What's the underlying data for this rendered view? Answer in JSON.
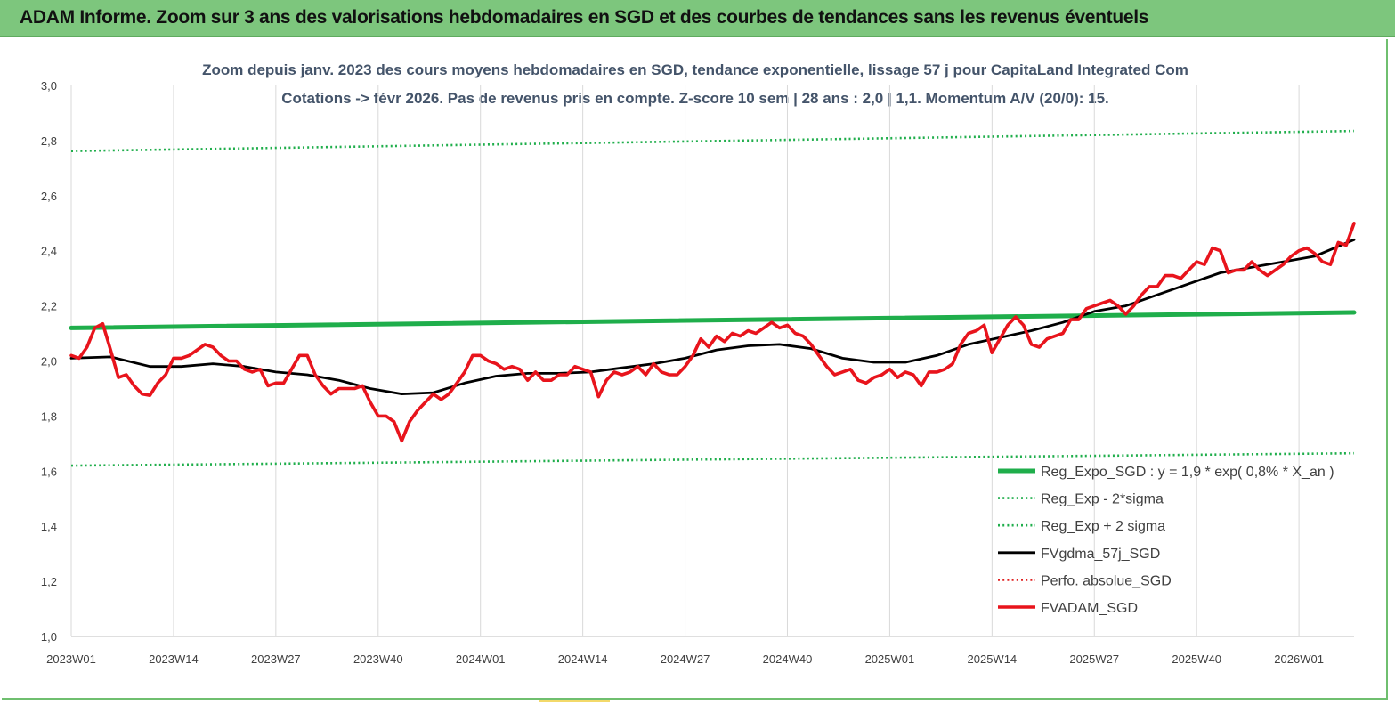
{
  "banner": {
    "title": "ADAM Informe. Zoom sur 3 ans des valorisations hebdomadaires en SGD et des courbes de tendances sans les revenus éventuels"
  },
  "chart_data": {
    "type": "line",
    "title_line1": "Zoom depuis janv. 2023 des cours moyens hebdomadaires en SGD, tendance exponentielle, lissage 57 j pour CapitaLand Integrated Com",
    "title_line2": "Cotations -> févr 2026.  Pas de revenus pris en compte. Z-score 10 sem  | 28 ans : 2,0 | 1,1. Momentum A/V (20/0): 15.",
    "ylim": [
      1.0,
      3.0
    ],
    "yticks": [
      "1,0",
      "1,2",
      "1,4",
      "1,6",
      "1,8",
      "2,0",
      "2,2",
      "2,4",
      "2,6",
      "2,8",
      "3,0"
    ],
    "xlim": [
      0,
      163
    ],
    "xticks": [
      {
        "x": 0,
        "label": "2023W01"
      },
      {
        "x": 13,
        "label": "2023W14"
      },
      {
        "x": 26,
        "label": "2023W27"
      },
      {
        "x": 39,
        "label": "2023W40"
      },
      {
        "x": 52,
        "label": "2024W01"
      },
      {
        "x": 65,
        "label": "2024W14"
      },
      {
        "x": 78,
        "label": "2024W27"
      },
      {
        "x": 91,
        "label": "2024W40"
      },
      {
        "x": 104,
        "label": "2025W01"
      },
      {
        "x": 117,
        "label": "2025W14"
      },
      {
        "x": 130,
        "label": "2025W27"
      },
      {
        "x": 143,
        "label": "2025W40"
      },
      {
        "x": 156,
        "label": "2026W01"
      }
    ],
    "grid": "vertical",
    "legend_position": "bottom-right",
    "series": [
      {
        "name": "Reg_Expo_SGD : y = 1,9 * exp( 0,8% *  X_an )",
        "color": "#1fae4b",
        "style": "solid-thick",
        "points": [
          [
            0,
            2.12
          ],
          [
            163,
            2.176
          ]
        ]
      },
      {
        "name": "Reg_Exp - 2*sigma",
        "color": "#1fae4b",
        "style": "dotted",
        "points": [
          [
            0,
            1.62
          ],
          [
            163,
            1.665
          ]
        ]
      },
      {
        "name": "Reg_Exp + 2 sigma",
        "color": "#1fae4b",
        "style": "dotted",
        "points": [
          [
            0,
            2.762
          ],
          [
            163,
            2.835
          ]
        ]
      },
      {
        "name": "FVgdma_57j_SGD",
        "color": "#000000",
        "style": "solid",
        "points": [
          [
            0,
            2.01
          ],
          [
            5,
            2.015
          ],
          [
            10,
            1.98
          ],
          [
            14,
            1.98
          ],
          [
            18,
            1.99
          ],
          [
            22,
            1.98
          ],
          [
            26,
            1.96
          ],
          [
            30,
            1.95
          ],
          [
            34,
            1.93
          ],
          [
            38,
            1.9
          ],
          [
            42,
            1.88
          ],
          [
            46,
            1.885
          ],
          [
            50,
            1.92
          ],
          [
            54,
            1.945
          ],
          [
            58,
            1.955
          ],
          [
            62,
            1.955
          ],
          [
            66,
            1.96
          ],
          [
            70,
            1.975
          ],
          [
            74,
            1.99
          ],
          [
            78,
            2.01
          ],
          [
            82,
            2.04
          ],
          [
            86,
            2.055
          ],
          [
            90,
            2.06
          ],
          [
            94,
            2.045
          ],
          [
            98,
            2.01
          ],
          [
            102,
            1.995
          ],
          [
            106,
            1.995
          ],
          [
            110,
            2.02
          ],
          [
            114,
            2.06
          ],
          [
            118,
            2.085
          ],
          [
            122,
            2.11
          ],
          [
            126,
            2.14
          ],
          [
            130,
            2.18
          ],
          [
            134,
            2.2
          ],
          [
            138,
            2.24
          ],
          [
            142,
            2.28
          ],
          [
            146,
            2.32
          ],
          [
            150,
            2.34
          ],
          [
            154,
            2.36
          ],
          [
            158,
            2.38
          ],
          [
            163,
            2.44
          ]
        ]
      },
      {
        "name": "Perfo. absolue_SGD",
        "color": "#e02020",
        "style": "dotted",
        "points": []
      },
      {
        "name": "FVADAM_SGD",
        "color": "#e8141c",
        "style": "solid-thick",
        "points": [
          [
            0,
            2.02
          ],
          [
            1,
            2.01
          ],
          [
            2,
            2.05
          ],
          [
            3,
            2.12
          ],
          [
            4,
            2.135
          ],
          [
            5,
            2.04
          ],
          [
            6,
            1.94
          ],
          [
            7,
            1.95
          ],
          [
            8,
            1.91
          ],
          [
            9,
            1.88
          ],
          [
            10,
            1.875
          ],
          [
            11,
            1.92
          ],
          [
            12,
            1.95
          ],
          [
            13,
            2.01
          ],
          [
            14,
            2.01
          ],
          [
            15,
            2.02
          ],
          [
            16,
            2.04
          ],
          [
            17,
            2.06
          ],
          [
            18,
            2.05
          ],
          [
            19,
            2.02
          ],
          [
            20,
            2.0
          ],
          [
            21,
            2.0
          ],
          [
            22,
            1.97
          ],
          [
            23,
            1.96
          ],
          [
            24,
            1.97
          ],
          [
            25,
            1.91
          ],
          [
            26,
            1.92
          ],
          [
            27,
            1.92
          ],
          [
            28,
            1.97
          ],
          [
            29,
            2.02
          ],
          [
            30,
            2.02
          ],
          [
            31,
            1.95
          ],
          [
            32,
            1.91
          ],
          [
            33,
            1.88
          ],
          [
            34,
            1.9
          ],
          [
            35,
            1.9
          ],
          [
            36,
            1.9
          ],
          [
            37,
            1.91
          ],
          [
            38,
            1.85
          ],
          [
            39,
            1.8
          ],
          [
            40,
            1.8
          ],
          [
            41,
            1.78
          ],
          [
            42,
            1.71
          ],
          [
            43,
            1.78
          ],
          [
            44,
            1.82
          ],
          [
            45,
            1.85
          ],
          [
            46,
            1.88
          ],
          [
            47,
            1.86
          ],
          [
            48,
            1.88
          ],
          [
            49,
            1.92
          ],
          [
            50,
            1.96
          ],
          [
            51,
            2.02
          ],
          [
            52,
            2.02
          ],
          [
            53,
            2.0
          ],
          [
            54,
            1.99
          ],
          [
            55,
            1.97
          ],
          [
            56,
            1.98
          ],
          [
            57,
            1.97
          ],
          [
            58,
            1.93
          ],
          [
            59,
            1.96
          ],
          [
            60,
            1.93
          ],
          [
            61,
            1.93
          ],
          [
            62,
            1.95
          ],
          [
            63,
            1.95
          ],
          [
            64,
            1.98
          ],
          [
            65,
            1.97
          ],
          [
            66,
            1.96
          ],
          [
            67,
            1.87
          ],
          [
            68,
            1.93
          ],
          [
            69,
            1.96
          ],
          [
            70,
            1.95
          ],
          [
            71,
            1.96
          ],
          [
            72,
            1.98
          ],
          [
            73,
            1.95
          ],
          [
            74,
            1.99
          ],
          [
            75,
            1.96
          ],
          [
            76,
            1.95
          ],
          [
            77,
            1.95
          ],
          [
            78,
            1.98
          ],
          [
            79,
            2.02
          ],
          [
            80,
            2.08
          ],
          [
            81,
            2.05
          ],
          [
            82,
            2.09
          ],
          [
            83,
            2.07
          ],
          [
            84,
            2.1
          ],
          [
            85,
            2.09
          ],
          [
            86,
            2.11
          ],
          [
            87,
            2.1
          ],
          [
            88,
            2.12
          ],
          [
            89,
            2.14
          ],
          [
            90,
            2.12
          ],
          [
            91,
            2.13
          ],
          [
            92,
            2.1
          ],
          [
            93,
            2.09
          ],
          [
            94,
            2.06
          ],
          [
            95,
            2.02
          ],
          [
            96,
            1.98
          ],
          [
            97,
            1.95
          ],
          [
            98,
            1.96
          ],
          [
            99,
            1.97
          ],
          [
            100,
            1.93
          ],
          [
            101,
            1.92
          ],
          [
            102,
            1.94
          ],
          [
            103,
            1.95
          ],
          [
            104,
            1.97
          ],
          [
            105,
            1.94
          ],
          [
            106,
            1.96
          ],
          [
            107,
            1.95
          ],
          [
            108,
            1.91
          ],
          [
            109,
            1.96
          ],
          [
            110,
            1.96
          ],
          [
            111,
            1.97
          ],
          [
            112,
            1.99
          ],
          [
            113,
            2.06
          ],
          [
            114,
            2.1
          ],
          [
            115,
            2.11
          ],
          [
            116,
            2.13
          ],
          [
            117,
            2.03
          ],
          [
            118,
            2.08
          ],
          [
            119,
            2.13
          ],
          [
            120,
            2.16
          ],
          [
            121,
            2.13
          ],
          [
            122,
            2.06
          ],
          [
            123,
            2.05
          ],
          [
            124,
            2.08
          ],
          [
            125,
            2.09
          ],
          [
            126,
            2.1
          ],
          [
            127,
            2.15
          ],
          [
            128,
            2.15
          ],
          [
            129,
            2.19
          ],
          [
            130,
            2.2
          ],
          [
            131,
            2.21
          ],
          [
            132,
            2.22
          ],
          [
            133,
            2.2
          ],
          [
            134,
            2.17
          ],
          [
            135,
            2.2
          ],
          [
            136,
            2.24
          ],
          [
            137,
            2.27
          ],
          [
            138,
            2.27
          ],
          [
            139,
            2.31
          ],
          [
            140,
            2.31
          ],
          [
            141,
            2.3
          ],
          [
            142,
            2.33
          ],
          [
            143,
            2.36
          ],
          [
            144,
            2.35
          ],
          [
            145,
            2.41
          ],
          [
            146,
            2.4
          ],
          [
            147,
            2.32
          ],
          [
            148,
            2.33
          ],
          [
            149,
            2.33
          ],
          [
            150,
            2.36
          ],
          [
            151,
            2.33
          ],
          [
            152,
            2.31
          ],
          [
            153,
            2.33
          ],
          [
            154,
            2.35
          ],
          [
            155,
            2.38
          ],
          [
            156,
            2.4
          ],
          [
            157,
            2.41
          ],
          [
            158,
            2.39
          ],
          [
            159,
            2.36
          ],
          [
            160,
            2.35
          ],
          [
            161,
            2.43
          ],
          [
            162,
            2.42
          ],
          [
            163,
            2.5
          ]
        ]
      }
    ]
  }
}
